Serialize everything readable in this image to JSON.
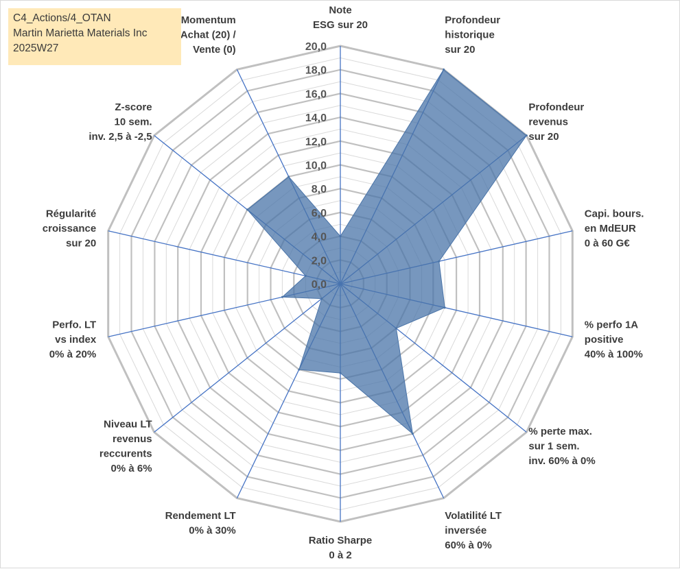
{
  "info_box": {
    "line1": "C4_Actions/4_OTAN",
    "line2": "Martin Marietta Materials Inc",
    "line3": "2025W27"
  },
  "colors": {
    "fill": "#4a74a8",
    "fill_opacity": 0.75,
    "spoke": "#4472c4",
    "grid_major": "#c0c0c0",
    "grid_minor": "#d9d9d9",
    "info_box_bg": "#ffe9b8"
  },
  "chart_data": {
    "type": "radar",
    "title": "",
    "rlim": [
      0,
      20
    ],
    "major_step": 2,
    "minor_step": 1,
    "tick_labels": [
      "0,0",
      "2,0",
      "4,0",
      "6,0",
      "8,0",
      "10,0",
      "12,0",
      "14,0",
      "16,0",
      "18,0",
      "20,0"
    ],
    "grid": true,
    "legend": "none",
    "categories": [
      [
        "Note",
        "ESG sur 20"
      ],
      [
        "Profondeur",
        "historique",
        "sur 20"
      ],
      [
        "Profondeur",
        "revenus",
        "sur 20"
      ],
      [
        "Capi. bours.",
        "en MdEUR",
        "0 à 60 G€"
      ],
      [
        "% perfo 1A",
        "positive",
        "40% à 100%"
      ],
      [
        "% perte max.",
        "sur 1 sem.",
        "inv. 60% à 0%"
      ],
      [
        "Volatilité LT",
        "inversée",
        "60% à 0%"
      ],
      [
        "Ratio Sharpe",
        "0 à 2"
      ],
      [
        "Rendement LT",
        "0% à 30%"
      ],
      [
        "Niveau LT",
        "revenus",
        "reccurents",
        "0% à 6%"
      ],
      [
        "Perfo. LT",
        "vs index",
        "0% à 20%"
      ],
      [
        "Régularité",
        "croissance",
        "sur 20"
      ],
      [
        "Z-score",
        "10 sem.",
        "inv. 2,5 à -2,5"
      ],
      [
        "Momentum",
        "Achat (20) /",
        "Vente (0)"
      ]
    ],
    "series": [
      {
        "values": [
          4.0,
          20.0,
          20.0,
          8.5,
          9.0,
          6.0,
          14.0,
          7.5,
          8.0,
          2.0,
          5.0,
          3.0,
          10.0,
          10.0
        ]
      }
    ]
  }
}
